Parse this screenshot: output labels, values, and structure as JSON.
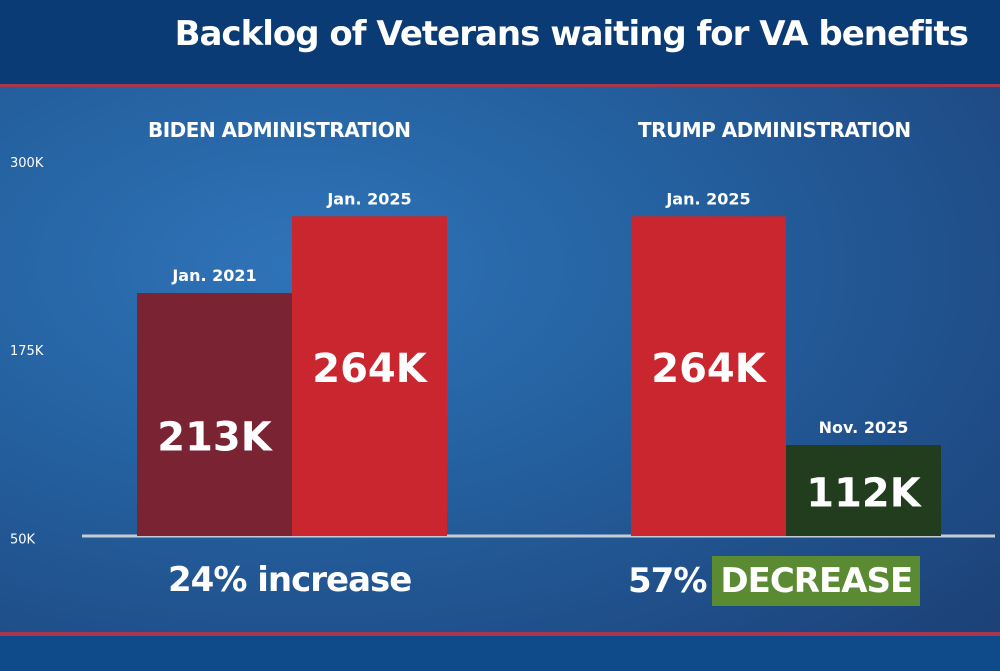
{
  "header": {
    "title": "Backlog of Veterans waiting for VA benefits"
  },
  "groups": [
    {
      "title": "BIDEN ADMINISTRATION",
      "change_value": "24%",
      "change_word": "increase"
    },
    {
      "title": "TRUMP ADMINISTRATION",
      "change_value": "57%",
      "change_word": "DECREASE"
    }
  ],
  "chart_data": {
    "type": "bar",
    "title": "Backlog of Veterans waiting for VA benefits",
    "y_ticks": [
      "300K",
      "175K",
      "50K"
    ],
    "y_tick_values": [
      300,
      175,
      50
    ],
    "ylim": [
      50,
      300
    ],
    "units": "thousands",
    "grid": false,
    "bars": [
      {
        "group": "BIDEN ADMINISTRATION",
        "category": "Jan. 2021",
        "value": 213,
        "label": "213K",
        "color": "#7a2333"
      },
      {
        "group": "BIDEN ADMINISTRATION",
        "category": "Jan. 2025",
        "value": 264,
        "label": "264K",
        "color": "#c9262f"
      },
      {
        "group": "TRUMP ADMINISTRATION",
        "category": "Jan. 2025",
        "value": 264,
        "label": "264K",
        "color": "#c9262f"
      },
      {
        "group": "TRUMP ADMINISTRATION",
        "category": "Nov. 2025",
        "value": 112,
        "label": "112K",
        "color": "#213d1e"
      }
    ]
  },
  "colors": {
    "header": "#0b3b74",
    "accent_line": "#a7374e",
    "decrease_badge": "#5a8a32"
  }
}
